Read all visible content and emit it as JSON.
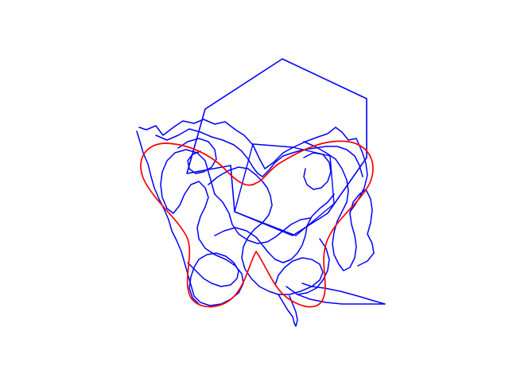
{
  "figure": {
    "background": "#ffffff",
    "colors": {
      "scribble": "#0000ff",
      "heart": "#ff0000"
    },
    "shapes": [
      "hexagon-outline",
      "hand-drawn-scribble-loops",
      "heart-curve"
    ]
  }
}
